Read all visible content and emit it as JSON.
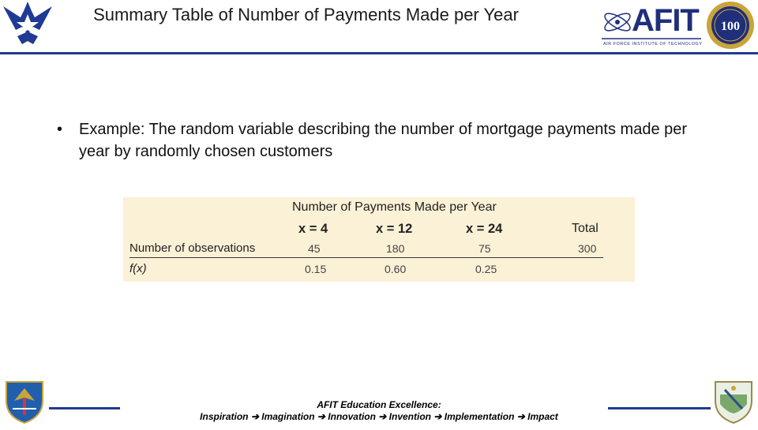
{
  "header": {
    "title": "Summary Table of Number of Payments Made per Year",
    "afit_wordmark": "AFIT",
    "afit_subtitle": "AIR FORCE INSTITUTE OF TECHNOLOGY",
    "seal_text": "100"
  },
  "content": {
    "bullet": "Example: The random variable describing the number of mortgage payments made per year by randomly chosen customers"
  },
  "table": {
    "group_header": "Number of Payments Made per Year",
    "columns": [
      "x = 4",
      "x = 12",
      "x = 24",
      "Total"
    ],
    "rows": [
      {
        "label": "Number of observations",
        "values": [
          "45",
          "180",
          "75",
          "300"
        ]
      },
      {
        "label": "f(x)",
        "values": [
          "0.15",
          "0.60",
          "0.25",
          ""
        ]
      }
    ]
  },
  "footer": {
    "line1": "AFIT Education Excellence:",
    "line2": "Inspiration ➔ Imagination ➔ Innovation ➔ Invention ➔ Implementation ➔ Impact"
  },
  "colors": {
    "accent": "#1f3a93",
    "table_bg": "#fbf1d6"
  },
  "icons": [
    "air-force-wing-icon",
    "afit-logo-icon",
    "afit-100-seal-icon",
    "aetc-shield-icon",
    "air-university-shield-icon"
  ]
}
